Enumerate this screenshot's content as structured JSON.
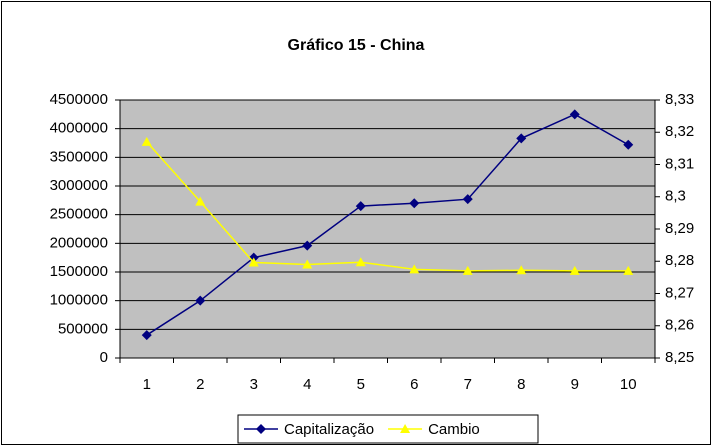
{
  "chart_data": {
    "type": "line",
    "title": "Gráfico 15 - China",
    "categories": [
      "1",
      "2",
      "3",
      "4",
      "5",
      "6",
      "7",
      "8",
      "9",
      "10"
    ],
    "series": [
      {
        "name": "Capitalização",
        "color": "#000080",
        "values": [
          400000,
          1000000,
          1750000,
          1960000,
          2650000,
          2700000,
          2770000,
          3830000,
          4250000,
          3720000
        ]
      },
      {
        "name": "Cambio",
        "color": "#ffff00",
        "axis": "y2",
        "values": [
          8.317,
          8.2985,
          8.2796,
          8.279,
          8.2797,
          8.2775,
          8.277,
          8.2772,
          8.277,
          8.277
        ]
      }
    ],
    "ylim": [
      0,
      4500000
    ],
    "yticks": [
      0,
      500000,
      1000000,
      1500000,
      2000000,
      2500000,
      3000000,
      3500000,
      4000000,
      4500000
    ],
    "y2lim": [
      8.25,
      8.33
    ],
    "y2ticks": [
      {
        "value": 8.25,
        "label": "8,25"
      },
      {
        "value": 8.26,
        "label": "8,26"
      },
      {
        "value": 8.27,
        "label": "8,27"
      },
      {
        "value": 8.28,
        "label": "8,28"
      },
      {
        "value": 8.29,
        "label": "8,29"
      },
      {
        "value": 8.3,
        "label": "8,3"
      },
      {
        "value": 8.31,
        "label": "8,31"
      },
      {
        "value": 8.32,
        "label": "8,32"
      },
      {
        "value": 8.33,
        "label": "8,33"
      }
    ],
    "grid": true,
    "legend": "bottom",
    "plot_background": "#c0c0c0"
  }
}
